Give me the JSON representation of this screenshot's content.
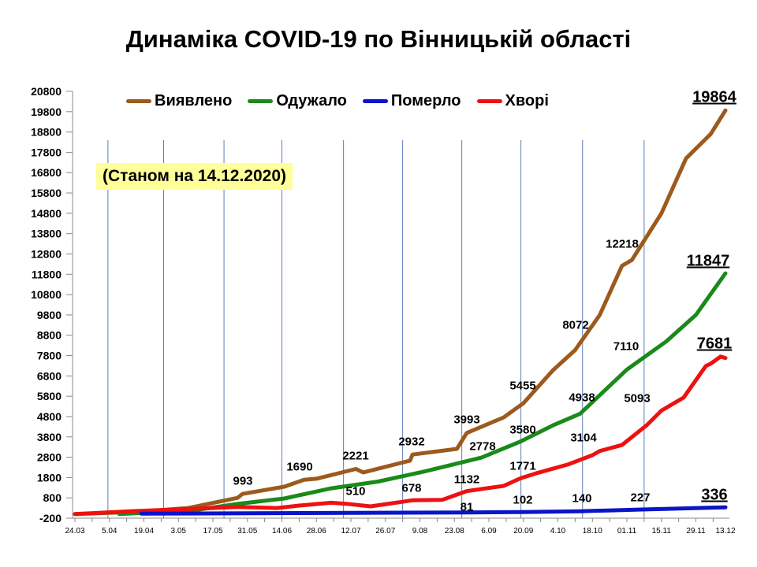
{
  "title": "Динаміка COVID-19 по Вінницькій області",
  "status": "(Станом на 14.12.2020)",
  "chart_data": {
    "type": "line",
    "title": "Динаміка COVID-19 по Вінницькій області",
    "xlabel": "",
    "ylabel": "",
    "ylim": [
      -200,
      20800
    ],
    "yticks": [
      "-200",
      "800",
      "1800",
      "2800",
      "3800",
      "4800",
      "5800",
      "6800",
      "7800",
      "8800",
      "9800",
      "10800",
      "11800",
      "12800",
      "13800",
      "14800",
      "15800",
      "16800",
      "17800",
      "18800",
      "19800",
      "20800"
    ],
    "xticks": [
      "24.03",
      "5.04",
      "19.04",
      "3.05",
      "17.05",
      "31.05",
      "14.06",
      "28.06",
      "12.07",
      "26.07",
      "9.08",
      "23.08",
      "6.09",
      "20.09",
      "4.10",
      "18.10",
      "01.11",
      "15.11",
      "29.11",
      "13.12"
    ],
    "x_unit": "days since 24.03",
    "legend": "top",
    "series": [
      {
        "name": "Виявлено",
        "color": "#9c5a1c",
        "points": [
          [
            0,
            0
          ],
          [
            25,
            110
          ],
          [
            46,
            300
          ],
          [
            66,
            800
          ],
          [
            68,
            993
          ],
          [
            85,
            1350
          ],
          [
            93,
            1690
          ],
          [
            98,
            1740
          ],
          [
            117,
            2050
          ],
          [
            114,
            2221
          ],
          [
            136,
            2632
          ],
          [
            137,
            2932
          ],
          [
            155,
            3210
          ],
          [
            159,
            3993
          ],
          [
            174,
            4760
          ],
          [
            182,
            5455
          ],
          [
            194,
            7080
          ],
          [
            203,
            8072
          ],
          [
            213,
            9800
          ],
          [
            222,
            12218
          ],
          [
            226,
            12500
          ],
          [
            238,
            14800
          ],
          [
            248,
            17500
          ],
          [
            258,
            18700
          ],
          [
            264,
            19864
          ]
        ]
      },
      {
        "name": "Одужало",
        "color": "#1a8a1a",
        "points": [
          [
            18,
            0
          ],
          [
            26,
            50
          ],
          [
            46,
            150
          ],
          [
            66,
            500
          ],
          [
            85,
            770
          ],
          [
            104,
            1270
          ],
          [
            123,
            1600
          ],
          [
            142,
            2100
          ],
          [
            165,
            2778
          ],
          [
            181,
            3580
          ],
          [
            194,
            4370
          ],
          [
            205,
            4938
          ],
          [
            224,
            7110
          ],
          [
            240,
            8500
          ],
          [
            252,
            9800
          ],
          [
            264,
            11847
          ]
        ]
      },
      {
        "name": "Померло",
        "color": "#0a14c8",
        "points": [
          [
            27,
            20
          ],
          [
            159,
            81
          ],
          [
            181,
            102
          ],
          [
            205,
            140
          ],
          [
            230,
            227
          ],
          [
            264,
            336
          ]
        ]
      },
      {
        "name": "Хворі",
        "color": "#ee1111",
        "points": [
          [
            0,
            0
          ],
          [
            24,
            150
          ],
          [
            46,
            250
          ],
          [
            66,
            350
          ],
          [
            82,
            300
          ],
          [
            91,
            420
          ],
          [
            104,
            560
          ],
          [
            110,
            510
          ],
          [
            120,
            380
          ],
          [
            137,
            678
          ],
          [
            149,
            700
          ],
          [
            159,
            1132
          ],
          [
            174,
            1390
          ],
          [
            181,
            1771
          ],
          [
            187,
            2000
          ],
          [
            200,
            2440
          ],
          [
            210,
            2900
          ],
          [
            213,
            3104
          ],
          [
            222,
            3400
          ],
          [
            232,
            4370
          ],
          [
            238,
            5093
          ],
          [
            247,
            5730
          ],
          [
            256,
            7280
          ],
          [
            258,
            7400
          ],
          [
            262,
            7750
          ],
          [
            264,
            7681
          ]
        ]
      }
    ],
    "annotations": {
      "confirmed": [
        "993",
        "1690",
        "2221",
        "2932",
        "3993",
        "5455",
        "8072",
        "12218",
        "19864"
      ],
      "recovered": [
        "2778",
        "3580",
        "4938",
        "7110",
        "11847"
      ],
      "active": [
        "510",
        "678",
        "1132",
        "1771",
        "3104",
        "5093",
        "7681"
      ],
      "deaths": [
        "81",
        "102",
        "140",
        "227",
        "336"
      ]
    }
  }
}
